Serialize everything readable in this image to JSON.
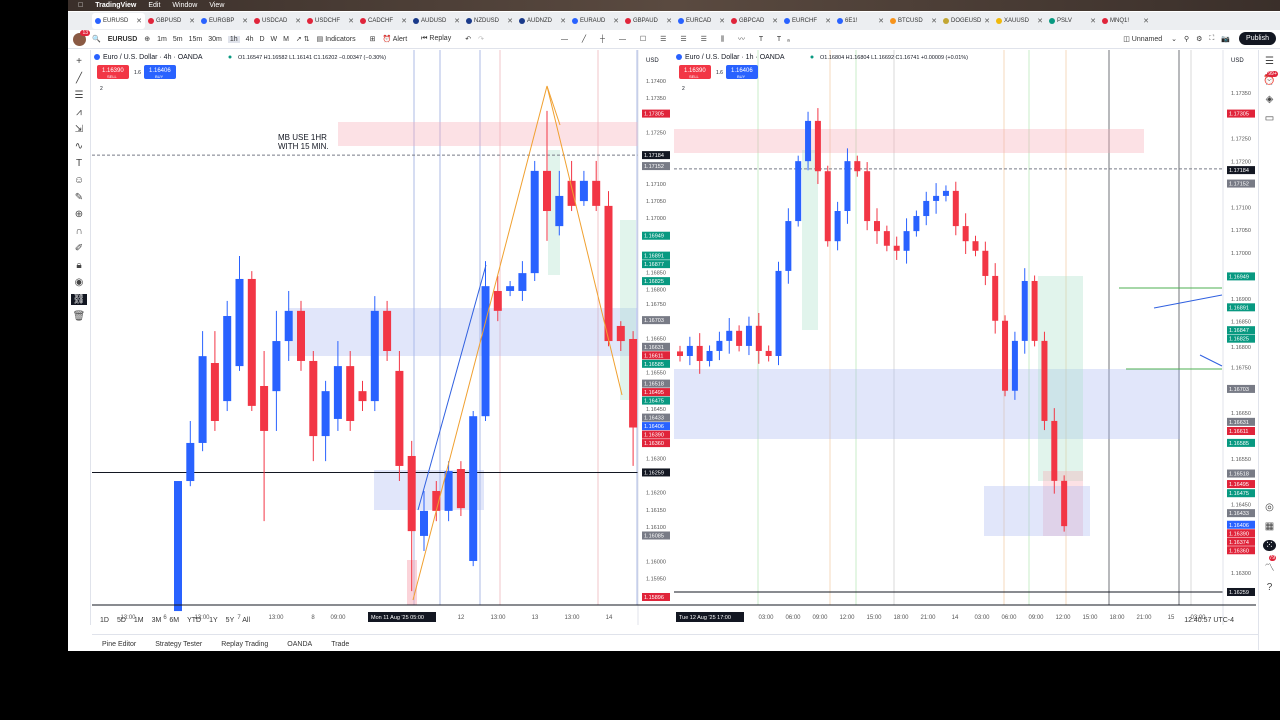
{
  "menubar": {
    "app": "TradingView",
    "items": [
      "Edit",
      "Window",
      "View"
    ]
  },
  "tabs": [
    {
      "label": "EURUSD",
      "color": "#2962ff",
      "active": true
    },
    {
      "label": "GBPUSD",
      "color": "#e0243a"
    },
    {
      "label": "EURGBP",
      "color": "#2962ff"
    },
    {
      "label": "USDCAD",
      "color": "#e0243a"
    },
    {
      "label": "USDCHF",
      "color": "#e0243a"
    },
    {
      "label": "CADCHF",
      "color": "#e0243a"
    },
    {
      "label": "AUDUSD",
      "color": "#1a3a8a"
    },
    {
      "label": "NZDUSD",
      "color": "#1a3a8a"
    },
    {
      "label": "AUDNZD",
      "color": "#1a3a8a"
    },
    {
      "label": "EURAUD",
      "color": "#2962ff"
    },
    {
      "label": "GBPAUD",
      "color": "#e0243a"
    },
    {
      "label": "EURCAD",
      "color": "#2962ff"
    },
    {
      "label": "GBPCAD",
      "color": "#e0243a"
    },
    {
      "label": "EURCHF",
      "color": "#2962ff"
    },
    {
      "label": "6E1!",
      "color": "#2962ff"
    },
    {
      "label": "BTCUSD",
      "color": "#f7931a"
    },
    {
      "label": "DOGEUSD",
      "color": "#c2a633"
    },
    {
      "label": "XAUUSD",
      "color": "#f0b90b"
    },
    {
      "label": "PSLV",
      "color": "#089981"
    },
    {
      "label": "MNQ1!",
      "color": "#e0243a"
    }
  ],
  "toolbar": {
    "notif_count": "13",
    "symbol": "EURUSD",
    "intervals": [
      "1m",
      "5m",
      "15m",
      "30m",
      "1h",
      "4h",
      "D",
      "W",
      "M"
    ],
    "active_interval": "1h",
    "indicators": "Indicators",
    "alert": "Alert",
    "replay": "Replay",
    "layout_name": "Unnamed",
    "publish": "Publish"
  },
  "left_chart": {
    "title": "Euro / U.S. Dollar · 4h · OANDA",
    "ohlc": "O1.16547 H1.16582 L1.16141 C1.16202 −0.00347 (−0.30%)",
    "sell": "1.16390",
    "sell_label": "SELL",
    "spread": "1.6",
    "buy": "1.16406",
    "buy_label": "BUY",
    "currency": "USD",
    "indicator_count": "2",
    "note": [
      "MB USE 1HR",
      "WITH 15 MIN."
    ],
    "price_ticks": [
      "1.17400",
      "1.17350",
      "1.17250",
      "1.17100",
      "1.17050",
      "1.17000",
      "1.16850",
      "1.16800",
      "1.16750",
      "1.16650",
      "1.16550",
      "1.16450",
      "1.16300",
      "1.16200",
      "1.16150",
      "1.16100",
      "1.16000",
      "1.15950"
    ],
    "price_tags": [
      {
        "v": "1.17305",
        "c": "#e0243a"
      },
      {
        "v": "1.17184",
        "c": "#131722"
      },
      {
        "v": "1.17152",
        "c": "#787b86"
      },
      {
        "v": "1.16949",
        "c": "#089981"
      },
      {
        "v": "1.16891",
        "c": "#089981"
      },
      {
        "v": "1.16877",
        "c": "#089981"
      },
      {
        "v": "1.16825",
        "c": "#089981"
      },
      {
        "v": "1.16703",
        "c": "#787b86"
      },
      {
        "v": "1.16631",
        "c": "#787b86"
      },
      {
        "v": "1.16611",
        "c": "#e0243a"
      },
      {
        "v": "1.16585",
        "c": "#089981"
      },
      {
        "v": "1.16518",
        "c": "#787b86"
      },
      {
        "v": "1.16495",
        "c": "#e0243a"
      },
      {
        "v": "1.16475",
        "c": "#089981"
      },
      {
        "v": "1.16433",
        "c": "#787b86"
      },
      {
        "v": "1.16406",
        "c": "#2962ff"
      },
      {
        "v": "1.16390",
        "c": "#e0243a"
      },
      {
        "v": "1.16360",
        "c": "#e0243a"
      },
      {
        "v": "1.16259",
        "c": "#131722"
      },
      {
        "v": "1.16085",
        "c": "#787b86"
      },
      {
        "v": "1.15896",
        "c": "#e0243a"
      }
    ],
    "time_labels": [
      "13:00",
      "6",
      "13:00",
      "7",
      "13:00",
      "8",
      "09:00",
      "12",
      "13:00",
      "13",
      "13:00",
      "14"
    ],
    "crosshair_time": "Mon 11 Aug '25  05:00",
    "candles": [
      [
        1.15855,
        1.16234,
        1.15855,
        1.16234
      ],
      [
        1.16234,
        1.16409,
        1.16219,
        1.16345
      ],
      [
        1.16345,
        1.16671,
        1.16321,
        1.16598
      ],
      [
        1.16578,
        1.16671,
        1.1638,
        1.16409
      ],
      [
        1.16467,
        1.16759,
        1.16438,
        1.16715
      ],
      [
        1.16569,
        1.1689,
        1.16555,
        1.16823
      ],
      [
        1.16823,
        1.16846,
        1.16438,
        1.16453
      ],
      [
        1.16511,
        1.16613,
        1.16117,
        1.1638
      ],
      [
        1.16496,
        1.1673,
        1.1638,
        1.16642
      ],
      [
        1.16642,
        1.16788,
        1.16584,
        1.1673
      ],
      [
        1.1673,
        1.16759,
        1.16555,
        1.16584
      ],
      [
        1.16584,
        1.16613,
        1.16292,
        1.16365
      ],
      [
        1.16365,
        1.16526,
        1.16292,
        1.16496
      ],
      [
        1.16415,
        1.16642,
        1.1638,
        1.16569
      ],
      [
        1.16569,
        1.16613,
        1.1638,
        1.16409
      ],
      [
        1.16496,
        1.16526,
        1.16438,
        1.16467
      ],
      [
        1.16467,
        1.16773,
        1.16438,
        1.1673
      ],
      [
        1.1673,
        1.16759,
        1.16584,
        1.16613
      ],
      [
        1.16555,
        1.16613,
        1.16234,
        1.16278
      ],
      [
        1.16307,
        1.16351,
        1.15913,
        1.16088
      ],
      [
        1.16074,
        1.16205,
        1.1603,
        1.16147
      ],
      [
        1.16205,
        1.16234,
        1.16117,
        1.16147
      ],
      [
        1.16147,
        1.16292,
        1.16117,
        1.16263
      ],
      [
        1.16269,
        1.16292,
        1.16132,
        1.16155
      ],
      [
        1.16001,
        1.16438,
        1.15986,
        1.16423
      ],
      [
        1.16423,
        1.16875,
        1.16409,
        1.16802
      ],
      [
        1.16788,
        1.16832,
        1.167,
        1.1673
      ],
      [
        1.16788,
        1.16817,
        1.16773,
        1.16802
      ],
      [
        1.16788,
        1.16875,
        1.16759,
        1.1684
      ],
      [
        1.1684,
        1.17167,
        1.16817,
        1.17138
      ],
      [
        1.17138,
        1.17313,
        1.16934,
        1.17021
      ],
      [
        1.16977,
        1.17138,
        1.1695,
        1.17065
      ],
      [
        1.17109,
        1.17167,
        1.17021,
        1.17036
      ],
      [
        1.1705,
        1.17138,
        1.17036,
        1.17109
      ],
      [
        1.17109,
        1.17167,
        1.17021,
        1.17036
      ],
      [
        1.17036,
        1.17079,
        1.16627,
        1.16642
      ],
      [
        1.16686,
        1.167,
        1.16613,
        1.16642
      ],
      [
        1.16648,
        1.16671,
        1.16278,
        1.1639
      ]
    ]
  },
  "right_chart": {
    "title": "Euro / U.S. Dollar · 1h · OANDA",
    "ohlc": "O1.16804 H1.16804 L1.16692 C1.16741 +0.00009 (+0.01%)",
    "sell": "1.16390",
    "sell_label": "SELL",
    "spread": "1.6",
    "buy": "1.16406",
    "buy_label": "BUY",
    "currency": "USD",
    "indicator_count": "2",
    "price_ticks": [
      "1.17350",
      "1.17250",
      "1.17200",
      "1.17100",
      "1.17050",
      "1.17000",
      "1.16900",
      "1.16850",
      "1.16800",
      "1.16750",
      "1.16650",
      "1.16550",
      "1.16450",
      "1.16300"
    ],
    "price_tags": [
      {
        "v": "1.17305",
        "c": "#e0243a"
      },
      {
        "v": "1.17184",
        "c": "#131722"
      },
      {
        "v": "1.17152",
        "c": "#787b86"
      },
      {
        "v": "1.16949",
        "c": "#089981"
      },
      {
        "v": "1.16891",
        "c": "#089981"
      },
      {
        "v": "1.16847",
        "c": "#089981"
      },
      {
        "v": "1.16825",
        "c": "#089981"
      },
      {
        "v": "1.16703",
        "c": "#787b86"
      },
      {
        "v": "1.16631",
        "c": "#787b86"
      },
      {
        "v": "1.16611",
        "c": "#e0243a"
      },
      {
        "v": "1.16585",
        "c": "#089981"
      },
      {
        "v": "1.16518",
        "c": "#787b86"
      },
      {
        "v": "1.16495",
        "c": "#e0243a"
      },
      {
        "v": "1.16475",
        "c": "#089981"
      },
      {
        "v": "1.16433",
        "c": "#787b86"
      },
      {
        "v": "1.16406",
        "c": "#2962ff"
      },
      {
        "v": "1.16390",
        "c": "#e0243a"
      },
      {
        "v": "1.16374",
        "c": "#e0243a"
      },
      {
        "v": "1.16360",
        "c": "#e0243a"
      },
      {
        "v": "1.16259",
        "c": "#131722"
      }
    ],
    "time_labels": [
      "03:00",
      "06:00",
      "09:00",
      "12:00",
      "15:00",
      "18:00",
      "21:00",
      "14",
      "03:00",
      "06:00",
      "09:00",
      "12:00",
      "15:00",
      "18:00",
      "21:00",
      "15",
      "03:00"
    ],
    "crosshair_time": "Tue 12 Aug '25  17:00",
    "closes": [
      1.16775,
      1.16797,
      1.16764,
      1.16786,
      1.16808,
      1.1683,
      1.16797,
      1.16841,
      1.16786,
      1.16775,
      1.16961,
      1.1707,
      1.17201,
      1.17289,
      1.17179,
      1.17026,
      1.17092,
      1.17201,
      1.17179,
      1.1707,
      1.17048,
      1.17016,
      1.17005,
      1.17048,
      1.17081,
      1.17114,
      1.17125,
      1.17136,
      1.17059,
      1.17026,
      1.17005,
      1.1695,
      1.16852,
      1.16699,
      1.16808,
      1.16939,
      1.16808,
      1.16633,
      1.16502,
      1.16403
    ]
  },
  "bottom": {
    "ranges": [
      "1D",
      "5D",
      "1M",
      "3M",
      "6M",
      "YTD",
      "1Y",
      "5Y",
      "All"
    ],
    "clock": "12:40:57 UTC-4",
    "panels": [
      "Pine Editor",
      "Strategy Tester",
      "Replay Trading",
      "OANDA",
      "Trade"
    ]
  },
  "sidebar": {
    "badge_top": "99+",
    "badge_bottom": "79",
    "badge_alert": "20"
  }
}
